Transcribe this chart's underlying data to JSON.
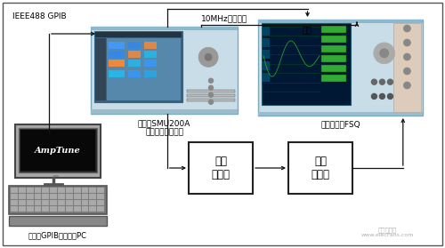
{
  "bg_color": "#f5f5f5",
  "border_color": "#000000",
  "label_ieee": "IEEE488 GPIB",
  "label_10mhz": "10MHz参考频率",
  "label_trigger": "触发",
  "label_smu": "信号源SMU200A\n（发生任意波形）",
  "label_fsq": "信号分析仯FSQ",
  "label_amptune": "AmpTune",
  "label_pc": "安装了GPIB接口卡的PC",
  "label_amp": "被测\n放大器",
  "label_atten": "可选\n衰减器",
  "watermark1": "电子发烧友",
  "watermark2": "www.elecFans.com",
  "smu_body_color": "#c5dce8",
  "smu_screen_color": "#4477aa",
  "smu_border_color": "#7aaabb",
  "fsq_body_color": "#c5dce8",
  "fsq_screen_color": "#001133",
  "fsq_border_color": "#7aaabb",
  "pc_monitor_outer": "#888888",
  "pc_monitor_screen": "#111111",
  "pc_kbd_color": "#888888"
}
